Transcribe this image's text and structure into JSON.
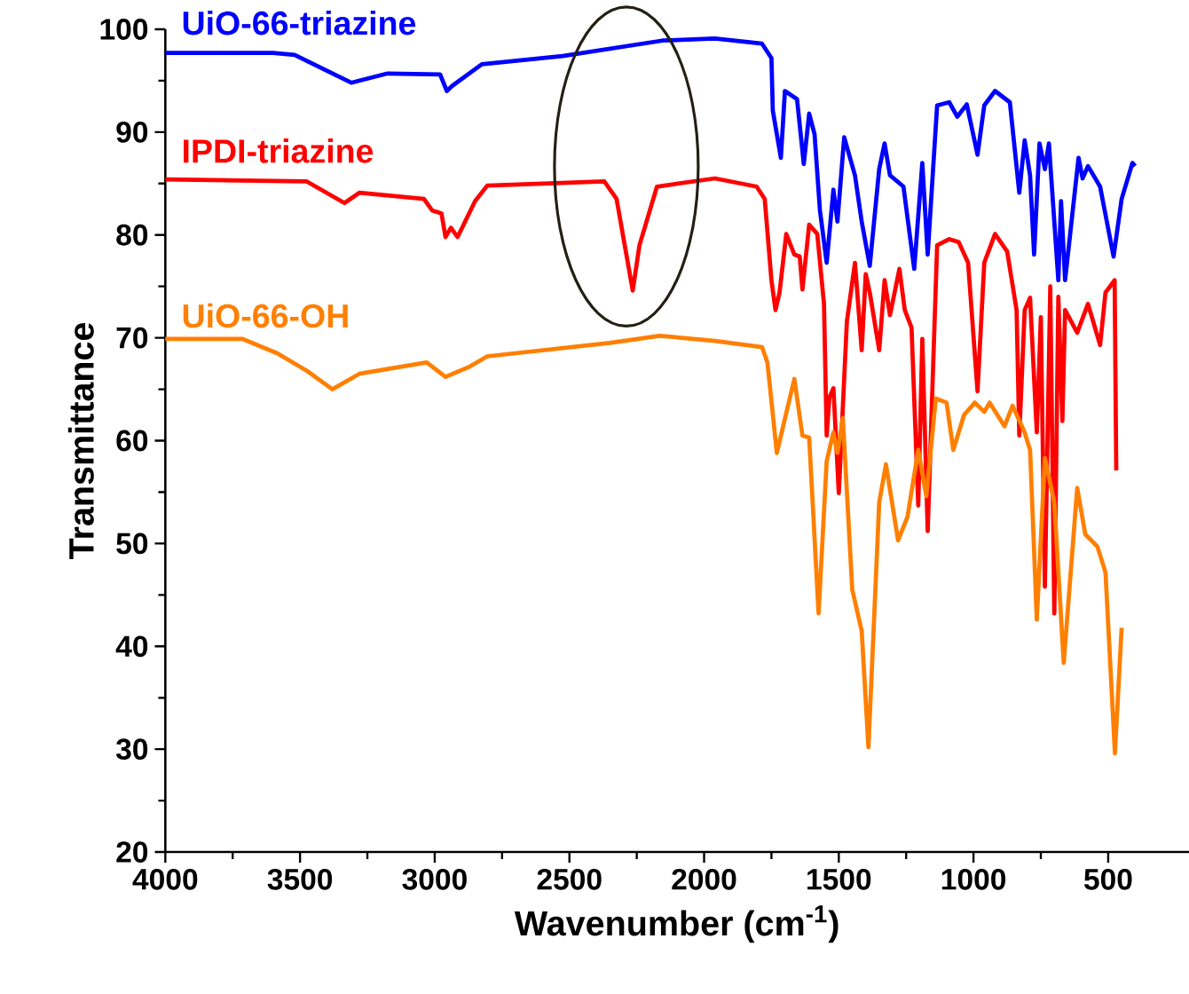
{
  "chart_data": {
    "type": "line",
    "xlabel": "Wavenumber (cm$^{-1}$)",
    "ylabel": "Transmittance",
    "xlim": [
      4000,
      200
    ],
    "ylim": [
      20,
      100
    ],
    "xticks": [
      4000,
      3500,
      3000,
      2500,
      2000,
      1500,
      1000,
      500
    ],
    "yticks": [
      20,
      30,
      40,
      50,
      60,
      70,
      80,
      90,
      100
    ],
    "series": [
      {
        "name": "UiO-66-triazine",
        "color": "#0000ff",
        "x": [
          4000,
          3600,
          3520,
          3310,
          3175,
          2980,
          2955,
          2935,
          2825,
          2525,
          2155,
          1960,
          1785,
          1750,
          1745,
          1715,
          1700,
          1655,
          1630,
          1610,
          1590,
          1570,
          1545,
          1520,
          1505,
          1480,
          1440,
          1415,
          1385,
          1350,
          1330,
          1310,
          1260,
          1220,
          1190,
          1170,
          1135,
          1090,
          1060,
          1025,
          985,
          960,
          920,
          865,
          830,
          810,
          790,
          775,
          755,
          735,
          720,
          685,
          675,
          660,
          610,
          595,
          575,
          530,
          480,
          450,
          410,
          400
        ],
        "values": [
          97.7,
          97.7,
          97.5,
          94.8,
          95.7,
          95.6,
          94.0,
          94.5,
          96.6,
          97.4,
          98.9,
          99.1,
          98.6,
          97.2,
          92.1,
          87.5,
          94.0,
          93.2,
          86.9,
          91.8,
          89.8,
          82.4,
          77.3,
          84.4,
          81.3,
          89.5,
          85.8,
          81.3,
          77.0,
          86.4,
          88.9,
          85.8,
          84.7,
          76.7,
          87.0,
          78.1,
          92.6,
          92.9,
          91.5,
          92.7,
          87.8,
          92.6,
          94.0,
          92.9,
          84.1,
          89.2,
          85.8,
          78.1,
          88.9,
          86.4,
          88.9,
          75.6,
          83.3,
          75.6,
          87.5,
          85.5,
          86.7,
          84.7,
          77.9,
          83.5,
          87.0,
          86.7
        ]
      },
      {
        "name": "IPDI-triazine",
        "color": "#ff0000",
        "x": [
          4000,
          3475,
          3335,
          3280,
          3040,
          3010,
          2975,
          2960,
          2940,
          2915,
          2850,
          2805,
          2370,
          2325,
          2265,
          2240,
          2175,
          1960,
          1805,
          1775,
          1750,
          1735,
          1720,
          1695,
          1665,
          1645,
          1635,
          1610,
          1580,
          1555,
          1545,
          1535,
          1520,
          1500,
          1470,
          1440,
          1415,
          1400,
          1385,
          1350,
          1330,
          1310,
          1275,
          1255,
          1230,
          1205,
          1190,
          1170,
          1135,
          1090,
          1055,
          1020,
          985,
          960,
          920,
          875,
          840,
          830,
          810,
          790,
          765,
          750,
          735,
          715,
          700,
          685,
          670,
          660,
          615,
          575,
          530,
          510,
          476,
          470
        ],
        "values": [
          85.4,
          85.2,
          83.1,
          84.1,
          83.5,
          82.4,
          82.1,
          79.8,
          80.7,
          79.8,
          83.3,
          84.8,
          85.2,
          83.5,
          74.6,
          79.0,
          84.7,
          85.5,
          84.7,
          83.5,
          75.6,
          72.7,
          74.4,
          80.1,
          78.1,
          77.9,
          74.7,
          81.0,
          80.1,
          73.3,
          60.5,
          64.2,
          65.1,
          54.9,
          71.6,
          77.3,
          68.8,
          76.2,
          74.4,
          68.8,
          75.6,
          72.2,
          76.7,
          72.7,
          71.0,
          53.7,
          69.9,
          51.2,
          79.0,
          79.6,
          79.3,
          77.3,
          64.8,
          77.3,
          80.1,
          78.4,
          72.7,
          60.5,
          72.7,
          73.9,
          60.8,
          72.0,
          45.8,
          75.0,
          43.2,
          74.0,
          61.9,
          72.7,
          70.5,
          73.3,
          69.3,
          74.4,
          75.6,
          57.1
        ]
      },
      {
        "name": "UiO-66-OH",
        "color": "#ff7f00",
        "x": [
          4000,
          3715,
          3585,
          3475,
          3380,
          3280,
          3030,
          2960,
          2870,
          2805,
          2350,
          2165,
          1960,
          1785,
          1765,
          1730,
          1665,
          1635,
          1610,
          1575,
          1545,
          1520,
          1505,
          1485,
          1450,
          1415,
          1390,
          1350,
          1325,
          1280,
          1245,
          1205,
          1175,
          1140,
          1100,
          1075,
          1035,
          995,
          960,
          940,
          885,
          855,
          810,
          790,
          765,
          735,
          700,
          665,
          615,
          585,
          540,
          510,
          475,
          450
        ],
        "values": [
          69.9,
          69.9,
          68.5,
          66.8,
          65.0,
          66.5,
          67.6,
          66.2,
          67.2,
          68.2,
          69.5,
          70.2,
          69.7,
          69.1,
          67.6,
          58.8,
          66.0,
          60.5,
          60.3,
          43.2,
          58.0,
          60.8,
          58.8,
          62.2,
          45.5,
          41.5,
          30.2,
          54.0,
          57.7,
          50.3,
          52.6,
          59.1,
          54.6,
          64.1,
          63.7,
          59.1,
          62.5,
          63.7,
          62.8,
          63.7,
          61.4,
          63.4,
          60.8,
          59.1,
          42.6,
          58.3,
          54.0,
          38.4,
          55.4,
          50.9,
          49.7,
          47.2,
          29.6,
          41.8
        ]
      }
    ]
  }
}
